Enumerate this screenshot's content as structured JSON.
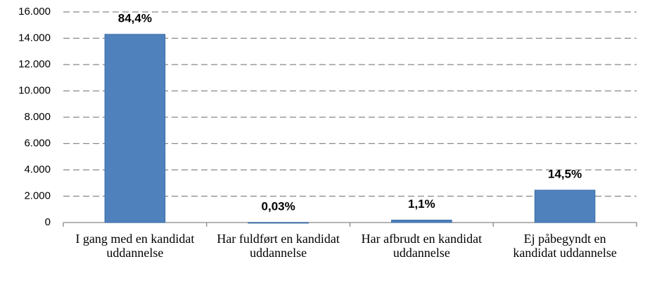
{
  "chart_data": {
    "type": "bar",
    "categories": [
      "I gang med en kandidat uddannelse",
      "Har fuldført en kandidat uddannelse",
      "Har afbrudt en kandidat uddannelse",
      "Ej påbegyndt en kandidat uddannelse"
    ],
    "values": [
      14300,
      5,
      186,
      2460
    ],
    "value_labels": [
      "84,4%",
      "0,03%",
      "1,1%",
      "14,5%"
    ],
    "color": "#4f81bd",
    "ylim": [
      0,
      16000
    ],
    "yticks": [
      0,
      {
        "value": 2000,
        "label": "2.000"
      },
      {
        "value": 4000,
        "label": "4.000"
      },
      {
        "value": 6000,
        "label": "6.000"
      },
      {
        "value": 8000,
        "label": "8.000"
      },
      {
        "value": 10000,
        "label": "10.000"
      },
      {
        "value": 12000,
        "label": "12.000"
      },
      {
        "value": 14000,
        "label": "14.000"
      },
      {
        "value": 16000,
        "label": "16.000"
      }
    ],
    "grid": true
  }
}
